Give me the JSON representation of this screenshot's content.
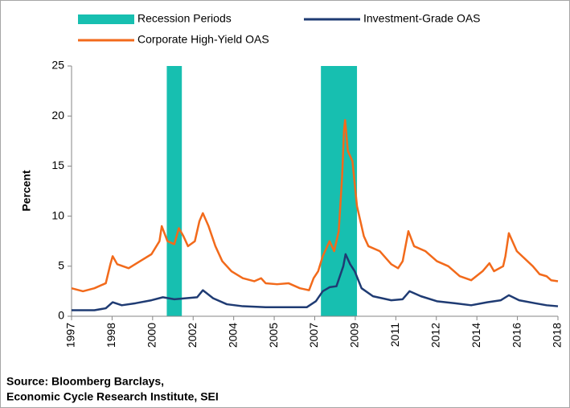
{
  "chart_data": {
    "type": "line",
    "y_label": "Percent",
    "source": [
      "Source: Bloomberg Barclays,",
      "Economic Cycle Research Institute, SEI"
    ],
    "recessions": {
      "name": "Recession Periods",
      "color": "#17bfb0",
      "periods": [
        [
          2001.17,
          2001.83
        ],
        [
          2007.92,
          2009.5
        ]
      ]
    },
    "series": [
      {
        "name": "Investment-Grade OAS",
        "color": "#1f3b73",
        "x": [
          1997,
          1998,
          1998.5,
          1998.8,
          1999.2,
          1999.8,
          2000.5,
          2001,
          2001.5,
          2002,
          2002.5,
          2002.75,
          2003.2,
          2003.8,
          2004.5,
          2005.5,
          2006.5,
          2007.3,
          2007.7,
          2008,
          2008.3,
          2008.6,
          2008.9,
          2009,
          2009.2,
          2009.4,
          2009.7,
          2010.2,
          2011,
          2011.5,
          2011.8,
          2012.3,
          2013,
          2013.8,
          2014.5,
          2015.2,
          2015.8,
          2016.15,
          2016.6,
          2017.3,
          2017.8,
          2018.3
        ],
        "values": [
          0.6,
          0.6,
          0.8,
          1.4,
          1.1,
          1.3,
          1.6,
          1.9,
          1.7,
          1.8,
          1.9,
          2.6,
          1.8,
          1.2,
          1.0,
          0.9,
          0.9,
          0.9,
          1.5,
          2.5,
          2.9,
          3.0,
          5.0,
          6.2,
          5.2,
          4.5,
          2.8,
          2.0,
          1.6,
          1.7,
          2.5,
          2.0,
          1.5,
          1.3,
          1.1,
          1.4,
          1.6,
          2.1,
          1.6,
          1.3,
          1.1,
          1.0
        ]
      },
      {
        "name": "Corporate High-Yield OAS",
        "color": "#f26a1b",
        "x": [
          1997,
          1997.5,
          1998,
          1998.5,
          1998.7,
          1998.8,
          1999,
          1999.5,
          2000,
          2000.5,
          2000.85,
          2000.95,
          2001.2,
          2001.5,
          2001.7,
          2001.9,
          2002.1,
          2002.4,
          2002.6,
          2002.75,
          2003,
          2003.3,
          2003.6,
          2004,
          2004.5,
          2005,
          2005.3,
          2005.5,
          2006,
          2006.5,
          2007,
          2007.4,
          2007.6,
          2007.8,
          2008,
          2008.3,
          2008.5,
          2008.7,
          2008.85,
          2008.93,
          2008.98,
          2009.1,
          2009.3,
          2009.5,
          2009.8,
          2010,
          2010.5,
          2011,
          2011.3,
          2011.5,
          2011.75,
          2012,
          2012.5,
          2013,
          2013.5,
          2014,
          2014.5,
          2015,
          2015.3,
          2015.5,
          2015.9,
          2016.0,
          2016.15,
          2016.5,
          2017.2,
          2017.5,
          2017.8,
          2018,
          2018.3
        ],
        "values": [
          2.8,
          2.5,
          2.8,
          3.3,
          5.2,
          6.0,
          5.2,
          4.8,
          5.5,
          6.2,
          7.5,
          9.0,
          7.5,
          7.2,
          8.8,
          8.0,
          7.0,
          7.5,
          9.5,
          10.3,
          9.0,
          7.0,
          5.5,
          4.5,
          3.8,
          3.5,
          3.8,
          3.3,
          3.2,
          3.3,
          2.8,
          2.6,
          3.8,
          4.5,
          6.0,
          7.5,
          6.5,
          8.5,
          14.0,
          18.5,
          19.6,
          16.5,
          15.5,
          11.0,
          8.0,
          7.0,
          6.5,
          5.2,
          4.8,
          5.5,
          8.5,
          7.0,
          6.5,
          5.5,
          5.0,
          4.0,
          3.6,
          4.5,
          5.3,
          4.5,
          5.0,
          6.0,
          8.3,
          6.5,
          5.0,
          4.2,
          4.0,
          3.6,
          3.5
        ]
      }
    ],
    "xlim": [
      1997,
      2018.3
    ],
    "ylim": [
      0,
      25
    ],
    "yticks": [
      0,
      5,
      10,
      15,
      20,
      25
    ],
    "xticks": [
      {
        "value": 1997,
        "label": "1997"
      },
      {
        "value": 1998.775,
        "label": "1998"
      },
      {
        "value": 2000.55,
        "label": "2000"
      },
      {
        "value": 2002.325,
        "label": "2002"
      },
      {
        "value": 2004.1,
        "label": "2004"
      },
      {
        "value": 2005.875,
        "label": "2005"
      },
      {
        "value": 2007.65,
        "label": "2007"
      },
      {
        "value": 2009.425,
        "label": "2009"
      },
      {
        "value": 2011.2,
        "label": "2011"
      },
      {
        "value": 2012.975,
        "label": "2012"
      },
      {
        "value": 2014.75,
        "label": "2014"
      },
      {
        "value": 2016.525,
        "label": "2016"
      },
      {
        "value": 2018.3,
        "label": "2018"
      }
    ],
    "grid": false
  }
}
